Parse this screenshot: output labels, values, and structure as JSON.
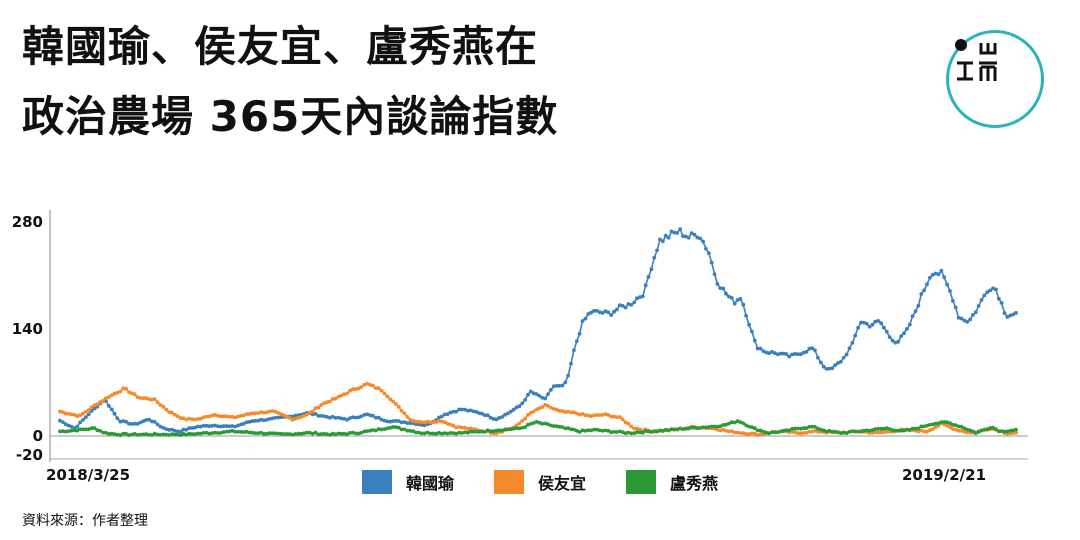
{
  "title_line1": "韓國瑜、侯友宜、盧秀燕在",
  "title_line2": "政治農場 365天內談論指數",
  "source": "資料來源：作者整理",
  "colors": {
    "logo": "#2ab3bf"
  },
  "chart_data": {
    "type": "line",
    "y_ticks": [
      "280",
      "140",
      "0",
      "-20"
    ],
    "ylim": [
      -20,
      290
    ],
    "x_start_label": "2018/3/25",
    "x_end_label": "2019/2/21",
    "x_count": 334,
    "series": [
      {
        "name": "韓國瑜",
        "color": "#3a7fbd",
        "points": [
          [
            0,
            20
          ],
          [
            6,
            10
          ],
          [
            12,
            30
          ],
          [
            18,
            48
          ],
          [
            24,
            20
          ],
          [
            30,
            15
          ],
          [
            36,
            22
          ],
          [
            42,
            10
          ],
          [
            48,
            6
          ],
          [
            55,
            12
          ],
          [
            62,
            14
          ],
          [
            70,
            12
          ],
          [
            78,
            20
          ],
          [
            85,
            22
          ],
          [
            92,
            25
          ],
          [
            100,
            30
          ],
          [
            108,
            25
          ],
          [
            116,
            22
          ],
          [
            124,
            28
          ],
          [
            132,
            20
          ],
          [
            140,
            18
          ],
          [
            148,
            14
          ],
          [
            155,
            28
          ],
          [
            162,
            35
          ],
          [
            170,
            30
          ],
          [
            176,
            22
          ],
          [
            180,
            28
          ],
          [
            186,
            40
          ],
          [
            190,
            58
          ],
          [
            196,
            48
          ],
          [
            199,
            65
          ],
          [
            203,
            65
          ],
          [
            205,
            75
          ],
          [
            208,
            118
          ],
          [
            211,
            148
          ],
          [
            214,
            162
          ],
          [
            218,
            162
          ],
          [
            222,
            160
          ],
          [
            226,
            168
          ],
          [
            230,
            172
          ],
          [
            233,
            180
          ],
          [
            236,
            188
          ],
          [
            239,
            225
          ],
          [
            242,
            255
          ],
          [
            246,
            262
          ],
          [
            250,
            268
          ],
          [
            254,
            260
          ],
          [
            258,
            265
          ],
          [
            262,
            240
          ],
          [
            265,
            205
          ],
          [
            268,
            190
          ],
          [
            272,
            175
          ],
          [
            275,
            182
          ],
          [
            278,
            150
          ],
          [
            281,
            118
          ],
          [
            285,
            110
          ],
          [
            290,
            108
          ],
          [
            295,
            104
          ],
          [
            300,
            110
          ],
          [
            304,
            115
          ],
          [
            308,
            92
          ],
          [
            311,
            86
          ],
          [
            316,
            100
          ],
          [
            320,
            120
          ],
          [
            323,
            150
          ],
          [
            327,
            145
          ],
          [
            331,
            150
          ],
          [
            335,
            130
          ],
          [
            338,
            122
          ],
          [
            342,
            138
          ],
          [
            345,
            160
          ],
          [
            348,
            185
          ],
          [
            352,
            215
          ],
          [
            356,
            212
          ],
          [
            360,
            185
          ],
          [
            363,
            155
          ],
          [
            367,
            150
          ],
          [
            371,
            170
          ],
          [
            375,
            195
          ],
          [
            378,
            192
          ],
          [
            382,
            158
          ],
          [
            386,
            160
          ]
        ]
      },
      {
        "name": "侯友宜",
        "color": "#f58a2b",
        "points": [
          [
            0,
            32
          ],
          [
            8,
            26
          ],
          [
            14,
            40
          ],
          [
            20,
            52
          ],
          [
            26,
            62
          ],
          [
            32,
            50
          ],
          [
            38,
            48
          ],
          [
            44,
            32
          ],
          [
            50,
            22
          ],
          [
            56,
            22
          ],
          [
            62,
            28
          ],
          [
            70,
            24
          ],
          [
            78,
            30
          ],
          [
            86,
            32
          ],
          [
            94,
            22
          ],
          [
            100,
            28
          ],
          [
            106,
            42
          ],
          [
            112,
            50
          ],
          [
            118,
            60
          ],
          [
            124,
            68
          ],
          [
            130,
            60
          ],
          [
            136,
            40
          ],
          [
            142,
            20
          ],
          [
            148,
            18
          ],
          [
            154,
            20
          ],
          [
            160,
            12
          ],
          [
            168,
            8
          ],
          [
            176,
            4
          ],
          [
            184,
            12
          ],
          [
            190,
            30
          ],
          [
            196,
            40
          ],
          [
            202,
            32
          ],
          [
            208,
            30
          ],
          [
            214,
            26
          ],
          [
            220,
            28
          ],
          [
            226,
            24
          ],
          [
            232,
            10
          ],
          [
            240,
            6
          ],
          [
            248,
            8
          ],
          [
            256,
            12
          ],
          [
            264,
            10
          ],
          [
            270,
            6
          ],
          [
            276,
            4
          ],
          [
            282,
            2
          ],
          [
            290,
            6
          ],
          [
            298,
            4
          ],
          [
            306,
            6
          ],
          [
            314,
            4
          ],
          [
            322,
            6
          ],
          [
            330,
            4
          ],
          [
            340,
            8
          ],
          [
            350,
            6
          ],
          [
            356,
            16
          ],
          [
            362,
            8
          ],
          [
            368,
            4
          ],
          [
            376,
            10
          ],
          [
            382,
            4
          ],
          [
            386,
            4
          ]
        ]
      },
      {
        "name": "盧秀燕",
        "color": "#2b9a35",
        "points": [
          [
            0,
            6
          ],
          [
            8,
            8
          ],
          [
            14,
            10
          ],
          [
            18,
            4
          ],
          [
            24,
            2
          ],
          [
            32,
            2
          ],
          [
            40,
            2
          ],
          [
            50,
            2
          ],
          [
            60,
            4
          ],
          [
            70,
            6
          ],
          [
            80,
            4
          ],
          [
            90,
            2
          ],
          [
            100,
            4
          ],
          [
            110,
            2
          ],
          [
            120,
            4
          ],
          [
            128,
            8
          ],
          [
            134,
            12
          ],
          [
            140,
            8
          ],
          [
            146,
            4
          ],
          [
            154,
            4
          ],
          [
            162,
            4
          ],
          [
            170,
            6
          ],
          [
            178,
            8
          ],
          [
            186,
            10
          ],
          [
            192,
            18
          ],
          [
            198,
            14
          ],
          [
            204,
            10
          ],
          [
            210,
            6
          ],
          [
            216,
            8
          ],
          [
            222,
            6
          ],
          [
            230,
            4
          ],
          [
            238,
            6
          ],
          [
            246,
            8
          ],
          [
            254,
            10
          ],
          [
            262,
            12
          ],
          [
            268,
            14
          ],
          [
            274,
            20
          ],
          [
            280,
            10
          ],
          [
            286,
            4
          ],
          [
            292,
            6
          ],
          [
            298,
            10
          ],
          [
            304,
            12
          ],
          [
            310,
            6
          ],
          [
            316,
            4
          ],
          [
            322,
            6
          ],
          [
            328,
            8
          ],
          [
            334,
            10
          ],
          [
            340,
            6
          ],
          [
            346,
            10
          ],
          [
            352,
            16
          ],
          [
            358,
            18
          ],
          [
            364,
            12
          ],
          [
            370,
            4
          ],
          [
            376,
            12
          ],
          [
            380,
            6
          ],
          [
            386,
            8
          ]
        ]
      }
    ],
    "legend": [
      "韓國瑜",
      "侯友宜",
      "盧秀燕"
    ]
  }
}
